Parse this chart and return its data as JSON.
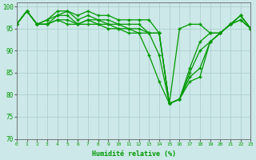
{
  "title": "",
  "xlabel": "Humidité relative (%)",
  "ylabel": "",
  "bg_color": "#cce8e8",
  "grid_color": "#aacccc",
  "line_color": "#009900",
  "marker": "+",
  "xlim": [
    0,
    23
  ],
  "ylim": [
    70,
    101
  ],
  "yticks": [
    70,
    75,
    80,
    85,
    90,
    95,
    100
  ],
  "xticks": [
    0,
    1,
    2,
    3,
    4,
    5,
    6,
    7,
    8,
    9,
    10,
    11,
    12,
    13,
    14,
    15,
    16,
    17,
    18,
    19,
    20,
    21,
    22,
    23
  ],
  "series": [
    [
      96,
      99,
      96,
      97,
      99,
      99,
      98,
      99,
      98,
      98,
      97,
      97,
      97,
      97,
      94,
      78,
      95,
      96,
      96,
      94,
      94,
      96,
      97,
      95
    ],
    [
      96,
      99,
      96,
      97,
      98,
      99,
      97,
      98,
      97,
      97,
      96,
      96,
      96,
      94,
      94,
      78,
      79,
      86,
      92,
      94,
      94,
      96,
      97,
      95
    ],
    [
      96,
      99,
      96,
      96,
      98,
      98,
      96,
      97,
      97,
      96,
      96,
      95,
      95,
      94,
      94,
      78,
      79,
      85,
      90,
      92,
      94,
      96,
      98,
      95
    ],
    [
      96,
      99,
      96,
      96,
      97,
      97,
      96,
      97,
      96,
      96,
      95,
      95,
      94,
      94,
      89,
      78,
      79,
      84,
      86,
      92,
      94,
      96,
      98,
      95
    ],
    [
      96,
      99,
      96,
      96,
      97,
      96,
      96,
      96,
      96,
      95,
      95,
      94,
      94,
      89,
      83,
      78,
      79,
      83,
      84,
      92,
      94,
      96,
      98,
      95
    ]
  ]
}
